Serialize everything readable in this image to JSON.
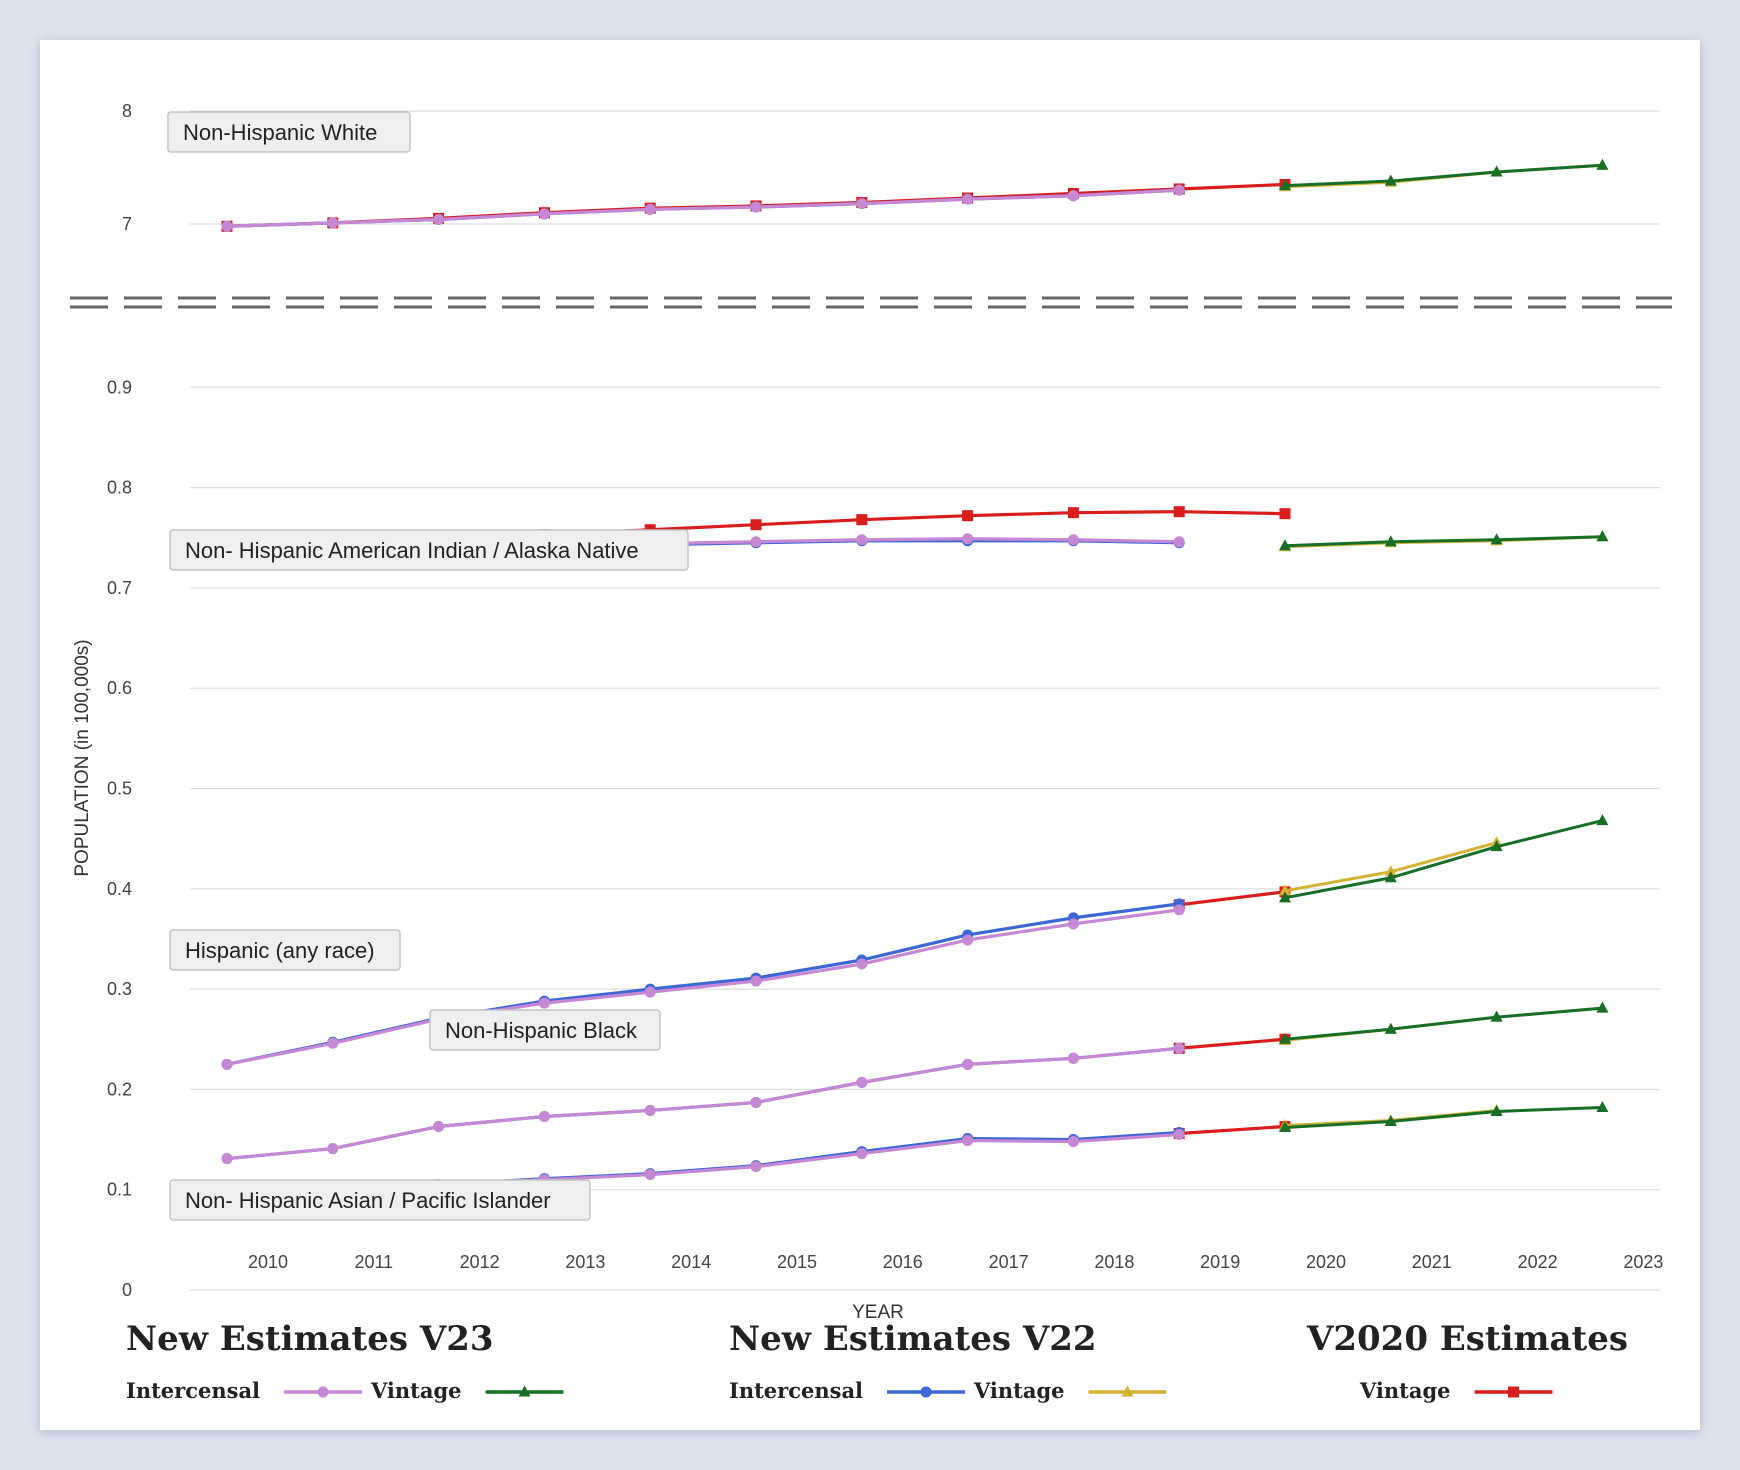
{
  "chart_data": {
    "type": "line",
    "xlabel": "YEAR",
    "ylabel": "POPULATION (in 100,000s)",
    "x_ticks": [
      "2010",
      "2011",
      "2012",
      "2013",
      "2014",
      "2015",
      "2016",
      "2017",
      "2018",
      "2019",
      "2020",
      "2021",
      "2022",
      "2023"
    ],
    "upper_panel": {
      "ylim": [
        6.0,
        8.0
      ],
      "y_ticks": [
        "7",
        "8"
      ]
    },
    "lower_panel": {
      "ylim": [
        0,
        0.9
      ],
      "y_ticks": [
        "0",
        "0.1",
        "0.2",
        "0.3",
        "0.4",
        "0.5",
        "0.6",
        "0.7",
        "0.8",
        "0.9"
      ]
    },
    "axis_break": true,
    "grid": true,
    "annotations": [
      "Non-Hispanic White",
      "Non- Hispanic American Indian / Alaska Native",
      "Hispanic (any race)",
      "Non-Hispanic Black",
      "Non- Hispanic Asian / Pacific Islander"
    ],
    "legend": {
      "placement": "bottom",
      "groups": [
        {
          "title": "New Estimates V23",
          "items": [
            {
              "label": "Intercensal",
              "color": "#c688d4",
              "marker": "circle"
            },
            {
              "label": "Vintage",
              "color": "#176e26",
              "marker": "triangle"
            }
          ]
        },
        {
          "title": "New Estimates V22",
          "items": [
            {
              "label": "Intercensal",
              "color": "#3d66d6",
              "marker": "circle"
            },
            {
              "label": "Vintage",
              "color": "#d4b233",
              "marker": "triangle"
            }
          ]
        },
        {
          "title": "V2020 Estimates",
          "items": [
            {
              "label": "Vintage",
              "color": "#d91c1c",
              "marker": "square"
            }
          ]
        }
      ]
    },
    "groups": [
      {
        "name": "Non-Hispanic White",
        "panel": "upper",
        "series": [
          {
            "key": "v2020_vintage",
            "x": [
              2010,
              2011,
              2012,
              2013,
              2014,
              2015,
              2016,
              2017,
              2018,
              2019,
              2020
            ],
            "values": [
              6.98,
              7.01,
              7.05,
              7.1,
              7.14,
              7.16,
              7.19,
              7.23,
              7.27,
              7.31,
              7.35
            ]
          },
          {
            "key": "v22_intercensal",
            "x": [
              2010,
              2011,
              2012,
              2013,
              2014,
              2015,
              2016,
              2017,
              2018,
              2019
            ],
            "values": [
              6.98,
              7.01,
              7.04,
              7.09,
              7.13,
              7.15,
              7.18,
              7.22,
              7.25,
              7.3
            ]
          },
          {
            "key": "v23_intercensal",
            "x": [
              2010,
              2011,
              2012,
              2013,
              2014,
              2015,
              2016,
              2017,
              2018,
              2019
            ],
            "values": [
              6.98,
              7.01,
              7.04,
              7.09,
              7.13,
              7.15,
              7.18,
              7.22,
              7.25,
              7.3
            ]
          },
          {
            "key": "v22_vintage",
            "x": [
              2020,
              2021,
              2022,
              2023
            ],
            "values": [
              7.33,
              7.37,
              7.46,
              7.52
            ]
          },
          {
            "key": "v23_vintage",
            "x": [
              2020,
              2021,
              2022,
              2023
            ],
            "values": [
              7.34,
              7.38,
              7.46,
              7.52
            ]
          }
        ]
      },
      {
        "name": "Non- Hispanic American Indian / Alaska Native",
        "panel": "lower",
        "series": [
          {
            "key": "v2020_vintage",
            "x": [
              2010,
              2011,
              2012,
              2013,
              2014,
              2015,
              2016,
              2017,
              2018,
              2019,
              2020
            ],
            "values": [
              0.733,
              0.74,
              0.747,
              0.753,
              0.758,
              0.763,
              0.768,
              0.772,
              0.775,
              0.776,
              0.774
            ]
          },
          {
            "key": "v22_intercensal",
            "x": [
              2010,
              2011,
              2012,
              2013,
              2014,
              2015,
              2016,
              2017,
              2018,
              2019
            ],
            "values": [
              0.733,
              0.736,
              0.74,
              0.742,
              0.743,
              0.745,
              0.747,
              0.747,
              0.747,
              0.745
            ]
          },
          {
            "key": "v23_intercensal",
            "x": [
              2010,
              2011,
              2012,
              2013,
              2014,
              2015,
              2016,
              2017,
              2018,
              2019
            ],
            "values": [
              0.733,
              0.736,
              0.74,
              0.742,
              0.744,
              0.746,
              0.748,
              0.749,
              0.748,
              0.746
            ]
          },
          {
            "key": "v22_vintage",
            "x": [
              2020,
              2021,
              2022,
              2023
            ],
            "values": [
              0.741,
              0.745,
              0.747,
              0.751
            ]
          },
          {
            "key": "v23_vintage",
            "x": [
              2020,
              2021,
              2022,
              2023
            ],
            "values": [
              0.742,
              0.746,
              0.748,
              0.751
            ]
          }
        ]
      },
      {
        "name": "Hispanic (any race)",
        "panel": "lower",
        "series": [
          {
            "key": "v2020_vintage",
            "x": [
              2019,
              2020
            ],
            "values": [
              0.384,
              0.397
            ]
          },
          {
            "key": "v22_intercensal",
            "x": [
              2010,
              2011,
              2012,
              2013,
              2014,
              2015,
              2016,
              2017,
              2018,
              2019
            ],
            "values": [
              0.225,
              0.247,
              0.271,
              0.288,
              0.3,
              0.311,
              0.329,
              0.354,
              0.371,
              0.385
            ]
          },
          {
            "key": "v23_intercensal",
            "x": [
              2010,
              2011,
              2012,
              2013,
              2014,
              2015,
              2016,
              2017,
              2018,
              2019
            ],
            "values": [
              0.225,
              0.246,
              0.27,
              0.286,
              0.297,
              0.308,
              0.325,
              0.349,
              0.365,
              0.379
            ]
          },
          {
            "key": "v22_vintage",
            "x": [
              2020,
              2021,
              2022
            ],
            "values": [
              0.398,
              0.417,
              0.446
            ]
          },
          {
            "key": "v23_vintage",
            "x": [
              2020,
              2021,
              2022,
              2023
            ],
            "values": [
              0.391,
              0.411,
              0.442,
              0.468
            ]
          }
        ]
      },
      {
        "name": "Non-Hispanic Black",
        "panel": "lower",
        "series": [
          {
            "key": "v2020_vintage",
            "x": [
              2019,
              2020
            ],
            "values": [
              0.241,
              0.25
            ]
          },
          {
            "key": "v22_intercensal",
            "x": [
              2010,
              2011,
              2012,
              2013,
              2014,
              2015,
              2016,
              2017,
              2018,
              2019
            ],
            "values": [
              0.131,
              0.141,
              0.163,
              0.173,
              0.179,
              0.187,
              0.207,
              0.225,
              0.231,
              0.241
            ]
          },
          {
            "key": "v23_intercensal",
            "x": [
              2010,
              2011,
              2012,
              2013,
              2014,
              2015,
              2016,
              2017,
              2018,
              2019
            ],
            "values": [
              0.131,
              0.141,
              0.163,
              0.173,
              0.179,
              0.187,
              0.207,
              0.225,
              0.231,
              0.241
            ]
          },
          {
            "key": "v22_vintage",
            "x": [
              2020,
              2021,
              2022,
              2023
            ],
            "values": [
              0.249,
              0.26,
              0.272,
              0.281
            ]
          },
          {
            "key": "v23_vintage",
            "x": [
              2020,
              2021,
              2022,
              2023
            ],
            "values": [
              0.25,
              0.26,
              0.272,
              0.281
            ]
          }
        ]
      },
      {
        "name": "Non- Hispanic Asian / Pacific Islander",
        "panel": "lower",
        "series": [
          {
            "key": "v2020_vintage",
            "x": [
              2019,
              2020
            ],
            "values": [
              0.156,
              0.163
            ]
          },
          {
            "key": "v22_intercensal",
            "x": [
              2010,
              2011,
              2012,
              2013,
              2014,
              2015,
              2016,
              2017,
              2018,
              2019
            ],
            "values": [
              0.087,
              0.093,
              0.105,
              0.111,
              0.116,
              0.124,
              0.138,
              0.151,
              0.15,
              0.157
            ]
          },
          {
            "key": "v23_intercensal",
            "x": [
              2010,
              2011,
              2012,
              2013,
              2014,
              2015,
              2016,
              2017,
              2018,
              2019
            ],
            "values": [
              0.087,
              0.093,
              0.105,
              0.11,
              0.115,
              0.123,
              0.136,
              0.149,
              0.148,
              0.155
            ]
          },
          {
            "key": "v22_vintage",
            "x": [
              2020,
              2021,
              2022
            ],
            "values": [
              0.164,
              0.169,
              0.179
            ]
          },
          {
            "key": "v23_vintage",
            "x": [
              2020,
              2021,
              2022,
              2023
            ],
            "values": [
              0.162,
              0.168,
              0.178,
              0.182
            ]
          }
        ]
      }
    ]
  }
}
